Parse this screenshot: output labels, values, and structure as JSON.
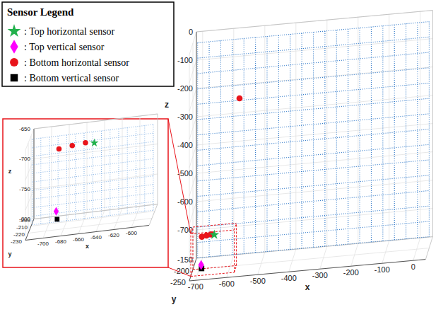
{
  "chart_data": {
    "type": "scatter3d",
    "legend": {
      "title": "Sensor Legend",
      "entries": [
        {
          "label": ": Top horizontal sensor",
          "marker": "star",
          "color": "#22b14c",
          "positions": [
            [
              -650,
              -205,
              -680
            ]
          ]
        },
        {
          "label": ": Top vertical sensor",
          "marker": "diamond",
          "color": "#ff00ff",
          "positions": [
            [
              -690,
              -215,
              -775
            ]
          ]
        },
        {
          "label": ": Bottom horizontal sensor",
          "marker": "circle",
          "color": "#e8141b",
          "positions": [
            [
              -690,
              -205,
              -683
            ],
            [
              -675,
              -205,
              -680
            ],
            [
              -660,
              -205,
              -678
            ],
            [
              -570,
              -200,
              -210
            ]
          ]
        },
        {
          "label": ": Bottom vertical sensor",
          "marker": "square",
          "color": "#000000",
          "positions": [
            [
              -688,
              -218,
              -785
            ]
          ]
        }
      ]
    },
    "main": {
      "x_label": "x",
      "y_label": "y",
      "z_label": "z",
      "xlim": [
        -720,
        40
      ],
      "xticks": [
        -700,
        -600,
        -500,
        -400,
        -300,
        -200,
        -100,
        0
      ],
      "ylim": [
        -250,
        -150
      ],
      "yticks": [
        -250,
        -200,
        -150
      ],
      "zlim": [
        -800,
        0
      ],
      "zticks": [
        -700,
        -600,
        -500,
        -400,
        -300,
        -200,
        -100,
        0
      ],
      "grid": true
    },
    "inset": {
      "x_label": "x",
      "y_label": "y",
      "z_label": "z",
      "xlim": [
        -720,
        -580
      ],
      "xticks": [
        -700,
        -680,
        -660,
        -640,
        -620,
        -600
      ],
      "ylim": [
        -230,
        -200
      ],
      "yticks": [
        -230,
        -220,
        -210,
        -200
      ],
      "zlim": [
        -800,
        -650
      ],
      "zticks": [
        -800,
        -750,
        -700,
        -650
      ],
      "grid": true
    }
  }
}
